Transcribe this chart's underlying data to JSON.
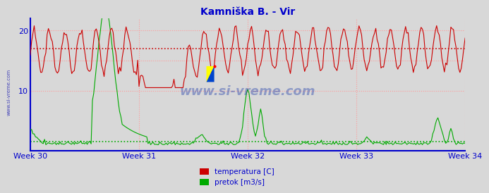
{
  "title": "Kamniška B. - Vir",
  "title_color": "#0000cc",
  "title_fontsize": 10,
  "bg_color": "#d8d8d8",
  "plot_bg_color": "#d8d8d8",
  "x_weeks": [
    "Week 30",
    "Week 31",
    "Week 32",
    "Week 33",
    "Week 34"
  ],
  "x_week_positions": [
    0,
    84,
    168,
    252,
    336
  ],
  "n_points": 337,
  "temp_color": "#cc0000",
  "flow_color": "#00aa00",
  "temp_avg": 17.0,
  "flow_avg": 1.5,
  "y_ticks": [
    10,
    20
  ],
  "y_min": 0,
  "y_max": 22,
  "grid_color_h": "#ff9999",
  "grid_color_v": "#ff9999",
  "grid_linestyle": ":",
  "watermark": "www.si-vreme.com",
  "legend_temp": "temperatura [C]",
  "legend_flow": "pretok [m3/s]",
  "axis_color_bottom": "#0000cc",
  "tick_color": "#0000cc",
  "tick_fontsize": 8,
  "sidebar_text": "www.si-vreme.com",
  "sidebar_color": "#0000aa"
}
